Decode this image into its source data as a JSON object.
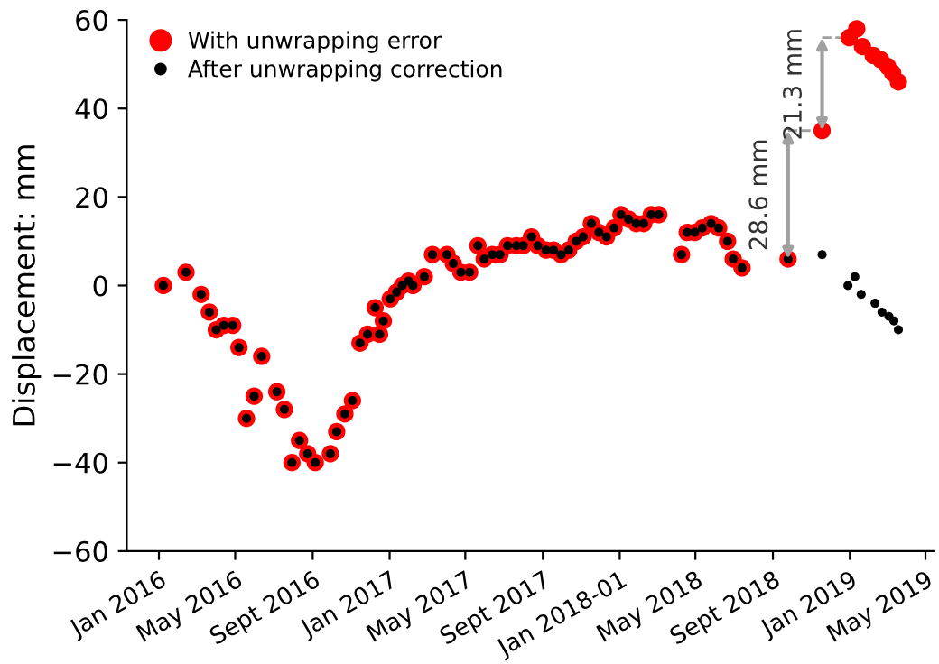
{
  "chart_data": {
    "type": "scatter",
    "ylabel": "Displacement: mm",
    "xlim": [
      "2015-11-11",
      "2019-05-15"
    ],
    "xticks": [
      {
        "value": "2016-01-01",
        "label": "Jan 2016"
      },
      {
        "value": "2016-05-01",
        "label": "May 2016"
      },
      {
        "value": "2016-09-01",
        "label": "Sept 2016"
      },
      {
        "value": "2017-01-01",
        "label": "Jan 2017"
      },
      {
        "value": "2017-05-01",
        "label": "May 2017"
      },
      {
        "value": "2017-09-01",
        "label": "Sept 2017"
      },
      {
        "value": "2018-01-01",
        "label": "Jan 2018-01"
      },
      {
        "value": "2018-05-01",
        "label": "May 2018"
      },
      {
        "value": "2018-09-01",
        "label": "Sept 2018"
      },
      {
        "value": "2019-01-01",
        "label": "Jan 2019"
      },
      {
        "value": "2019-05-01",
        "label": "May 2019"
      }
    ],
    "ylim": [
      -60,
      60
    ],
    "yticks": [
      {
        "value": -60,
        "label": "−60"
      },
      {
        "value": -40,
        "label": "−40"
      },
      {
        "value": -20,
        "label": "−20"
      },
      0,
      20,
      40,
      60
    ],
    "marker": "circle",
    "legend": "top left",
    "grid": false,
    "series": [
      {
        "name": "With unwrapping error",
        "color": "#ff0000",
        "x": [
          "2016-01-08",
          "2016-02-13",
          "2016-03-08",
          "2016-03-21",
          "2016-04-01",
          "2016-04-13",
          "2016-04-27",
          "2016-05-07",
          "2016-05-19",
          "2016-05-31",
          "2016-06-12",
          "2016-07-06",
          "2016-07-18",
          "2016-07-30",
          "2016-08-11",
          "2016-08-24",
          "2016-09-05",
          "2016-09-29",
          "2016-10-09",
          "2016-10-22",
          "2016-11-03",
          "2016-11-15",
          "2016-11-27",
          "2016-12-09",
          "2016-12-16",
          "2016-12-22",
          "2017-01-02",
          "2017-01-12",
          "2017-01-21",
          "2017-01-31",
          "2017-02-07",
          "2017-02-25",
          "2017-03-10",
          "2017-04-02",
          "2017-04-12",
          "2017-04-24",
          "2017-05-08",
          "2017-05-21",
          "2017-05-31",
          "2017-06-13",
          "2017-06-25",
          "2017-07-07",
          "2017-07-21",
          "2017-08-01",
          "2017-08-14",
          "2017-08-24",
          "2017-09-06",
          "2017-09-18",
          "2017-09-30",
          "2017-10-12",
          "2017-10-24",
          "2017-11-04",
          "2017-11-17",
          "2017-11-29",
          "2017-12-11",
          "2017-12-23",
          "2018-01-03",
          "2018-01-15",
          "2018-01-27",
          "2018-02-08",
          "2018-02-20",
          "2018-03-04",
          "2018-04-09",
          "2018-04-18",
          "2018-04-30",
          "2018-05-12",
          "2018-05-26",
          "2018-06-07",
          "2018-06-21",
          "2018-06-30",
          "2018-07-14",
          "2018-09-25",
          "2018-11-18",
          "2018-12-31",
          "2019-01-12",
          "2019-01-21",
          "2019-02-07",
          "2019-02-19",
          "2019-03-02",
          "2019-03-10",
          "2019-03-19"
        ],
        "values": [
          0,
          3,
          -2,
          -6,
          -10,
          -9,
          -9,
          -14,
          -30,
          -25,
          -16,
          -24,
          -28,
          -40,
          -35,
          -38,
          -40,
          -38,
          -33,
          -29,
          -26,
          -13,
          -11,
          -5,
          -11,
          -8,
          -3,
          -1.5,
          0,
          1,
          0,
          2,
          7,
          7,
          5,
          3,
          3,
          9,
          6,
          7,
          7,
          9,
          9,
          9,
          11,
          9,
          8,
          8,
          7,
          8,
          10,
          11,
          14,
          12,
          11,
          13,
          16,
          15,
          14,
          14,
          16,
          16,
          7,
          12,
          12,
          13,
          14,
          13,
          10,
          6,
          4,
          6,
          35,
          56,
          58,
          54,
          52,
          51,
          49.5,
          48,
          46
        ]
      },
      {
        "name": "After unwrapping correction",
        "color": "#000000",
        "x": [
          "2016-01-08",
          "2016-02-13",
          "2016-03-08",
          "2016-03-21",
          "2016-04-01",
          "2016-04-13",
          "2016-04-27",
          "2016-05-07",
          "2016-05-19",
          "2016-05-31",
          "2016-06-12",
          "2016-07-06",
          "2016-07-18",
          "2016-07-30",
          "2016-08-11",
          "2016-08-24",
          "2016-09-05",
          "2016-09-29",
          "2016-10-09",
          "2016-10-22",
          "2016-11-03",
          "2016-11-15",
          "2016-11-27",
          "2016-12-09",
          "2016-12-16",
          "2016-12-22",
          "2017-01-02",
          "2017-01-12",
          "2017-01-21",
          "2017-01-31",
          "2017-02-07",
          "2017-02-25",
          "2017-03-10",
          "2017-04-02",
          "2017-04-12",
          "2017-04-24",
          "2017-05-08",
          "2017-05-21",
          "2017-05-31",
          "2017-06-13",
          "2017-06-25",
          "2017-07-07",
          "2017-07-21",
          "2017-08-01",
          "2017-08-14",
          "2017-08-24",
          "2017-09-06",
          "2017-09-18",
          "2017-09-30",
          "2017-10-12",
          "2017-10-24",
          "2017-11-04",
          "2017-11-17",
          "2017-11-29",
          "2017-12-11",
          "2017-12-23",
          "2018-01-03",
          "2018-01-15",
          "2018-01-27",
          "2018-02-08",
          "2018-02-20",
          "2018-03-04",
          "2018-04-09",
          "2018-04-18",
          "2018-04-30",
          "2018-05-12",
          "2018-05-26",
          "2018-06-07",
          "2018-06-21",
          "2018-06-30",
          "2018-07-14",
          "2018-09-25",
          "2018-11-18",
          "2018-12-29",
          "2019-01-09",
          "2019-01-19",
          "2019-02-10",
          "2019-02-21",
          "2019-03-04",
          "2019-03-12",
          "2019-03-19"
        ],
        "values": [
          0,
          3,
          -2,
          -6,
          -10,
          -9,
          -9,
          -14,
          -30,
          -25,
          -16,
          -24,
          -28,
          -40,
          -35,
          -38,
          -40,
          -38,
          -33,
          -29,
          -26,
          -13,
          -11,
          -5,
          -11,
          -8,
          -3,
          -1.5,
          0,
          1,
          0,
          2,
          7,
          7,
          5,
          3,
          3,
          9,
          6,
          7,
          7,
          9,
          9,
          9,
          11,
          9,
          8,
          8,
          7,
          8,
          10,
          11,
          14,
          12,
          11,
          13,
          16,
          15,
          14,
          14,
          16,
          16,
          7,
          12,
          12,
          13,
          14,
          13,
          10,
          6,
          4,
          6,
          7,
          0,
          2,
          -2,
          -4,
          -6,
          -7,
          -8,
          -10
        ]
      }
    ],
    "annotations": [
      {
        "text": "28.6 mm",
        "x": "2018-09-25",
        "y": 6
      },
      {
        "text": "21.3 mm",
        "x": "2018-11-18",
        "y": 35
      }
    ]
  }
}
